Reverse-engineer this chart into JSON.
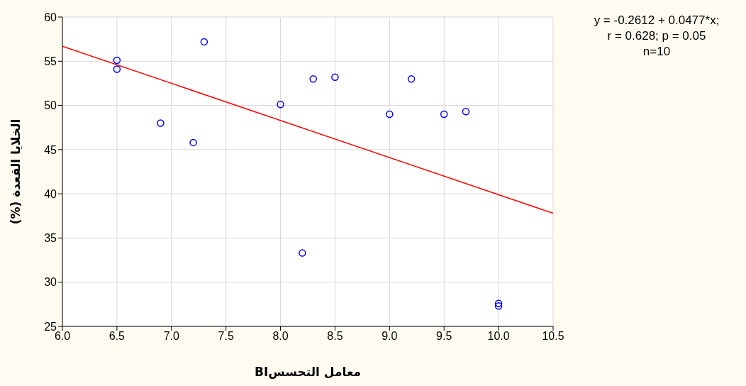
{
  "chart_data": {
    "type": "scatter",
    "xlabel": "معامل التحسسBI",
    "ylabel": "الخلايا القعدة (%)",
    "annotations": [
      "y = -0.2612 + 0.0477*x;",
      "r = 0.628; p = 0.05",
      "n=10"
    ],
    "series": [
      {
        "color": "#0000ff",
        "marker": "circle",
        "x": [
          6.5,
          6.5,
          6.9,
          7.2,
          7.3,
          8.0,
          8.2,
          8.3,
          8.5,
          9.0,
          9.2,
          9.5,
          9.7,
          10.0,
          10.0
        ],
        "values": [
          55.1,
          54.1,
          48.0,
          45.8,
          57.2,
          50.1,
          33.3,
          53.0,
          53.2,
          49.0,
          53.0,
          49.0,
          49.3,
          27.6,
          27.3
        ]
      },
      {
        "type": "line",
        "color": "#ff0000",
        "marker": "none",
        "x": [
          6.0,
          10.5
        ],
        "values": [
          56.7,
          37.8
        ]
      }
    ],
    "xlim": [
      6.0,
      10.5
    ],
    "xticks": [
      {
        "value": 6.0,
        "label": "6.0"
      },
      {
        "value": 6.5,
        "label": "6.5"
      },
      {
        "value": 7.0,
        "label": "7.0"
      },
      {
        "value": 7.5,
        "label": "7.5"
      },
      {
        "value": 8.0,
        "label": "8.0"
      },
      {
        "value": 8.5,
        "label": "8.5"
      },
      {
        "value": 9.0,
        "label": "9.0"
      },
      {
        "value": 9.5,
        "label": "9.5"
      },
      {
        "value": 10.0,
        "label": "10.0"
      },
      {
        "value": 10.5,
        "label": "10.5"
      }
    ],
    "ylim": [
      25,
      60
    ],
    "yticks": [
      25,
      30,
      35,
      40,
      45,
      50,
      55,
      60
    ],
    "grid": true,
    "legend": false
  }
}
